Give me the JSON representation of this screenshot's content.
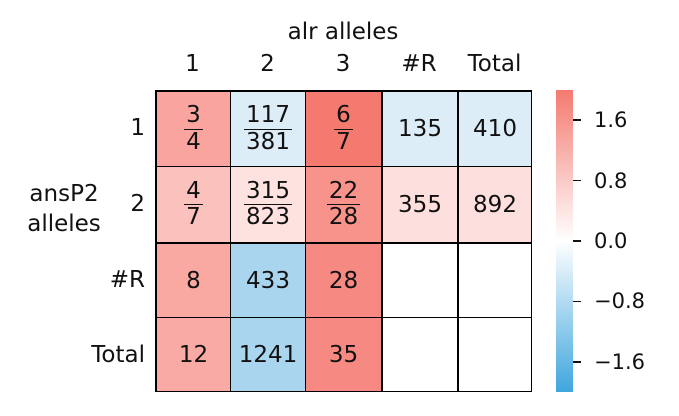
{
  "chart_data": {
    "type": "heatmap",
    "column_axis_label": "alr alleles",
    "row_axis_label": [
      "ansP2",
      "alleles"
    ],
    "column_labels": [
      "1",
      "2",
      "3",
      "#R",
      "Total"
    ],
    "row_labels": [
      "1",
      "2",
      "#R",
      "Total"
    ],
    "cells": [
      [
        {
          "text": "",
          "num": "3",
          "den": "4",
          "color": "#f9a49e"
        },
        {
          "text": "",
          "num": "117",
          "den": "381",
          "color": "#dcedf7"
        },
        {
          "text": "",
          "num": "6",
          "den": "7",
          "color": "#f47a70"
        },
        {
          "text": "135",
          "num": "",
          "den": "",
          "color": "#dcedf7"
        },
        {
          "text": "410",
          "num": "",
          "den": "",
          "color": "#dcedf7"
        }
      ],
      [
        {
          "text": "",
          "num": "4",
          "den": "7",
          "color": "#fbc1bc"
        },
        {
          "text": "",
          "num": "315",
          "den": "823",
          "color": "#fde2df"
        },
        {
          "text": "",
          "num": "22",
          "den": "28",
          "color": "#f7938b"
        },
        {
          "text": "355",
          "num": "",
          "den": "",
          "color": "#fde0dd"
        },
        {
          "text": "892",
          "num": "",
          "den": "",
          "color": "#fde0dd"
        }
      ],
      [
        {
          "text": "8",
          "num": "",
          "den": "",
          "color": "#f9a9a2"
        },
        {
          "text": "433",
          "num": "",
          "den": "",
          "color": "#a9d5ee"
        },
        {
          "text": "28",
          "num": "",
          "den": "",
          "color": "#f68a82"
        },
        {
          "text": "",
          "num": "",
          "den": "",
          "color": "#ffffff"
        },
        {
          "text": "",
          "num": "",
          "den": "",
          "color": "#ffffff"
        }
      ],
      [
        {
          "text": "12",
          "num": "",
          "den": "",
          "color": "#f9aaa4"
        },
        {
          "text": "1241",
          "num": "",
          "den": "",
          "color": "#a9d5ee"
        },
        {
          "text": "35",
          "num": "",
          "den": "",
          "color": "#f68a82"
        },
        {
          "text": "",
          "num": "",
          "den": "",
          "color": "#ffffff"
        },
        {
          "text": "",
          "num": "",
          "den": "",
          "color": "#ffffff"
        }
      ]
    ],
    "colorbar": {
      "range": [
        -2,
        2
      ],
      "ticks": [
        1.6,
        0.8,
        0.0,
        -0.8,
        -1.6
      ],
      "tick_labels": [
        "1.6",
        "0.8",
        "0.0",
        "−0.8",
        "−1.6"
      ],
      "color_high": "#f47a70",
      "color_mid": "#ffffff",
      "color_low": "#3fa6de"
    },
    "grid": true,
    "legend": "colorbar-right"
  }
}
